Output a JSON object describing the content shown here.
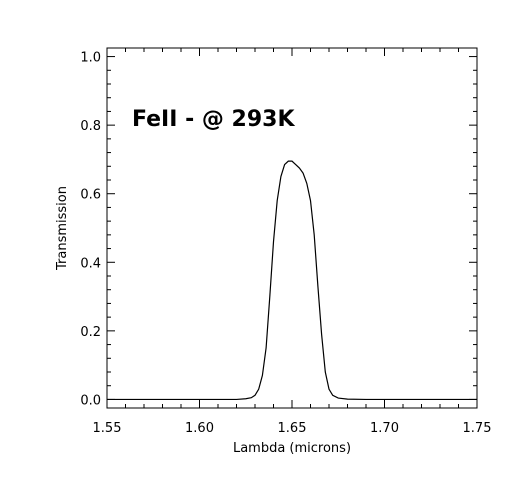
{
  "chart_data": {
    "type": "line",
    "title": "",
    "xlabel": "Lambda (microns)",
    "ylabel": "Transmission",
    "xlim": [
      1.55,
      1.75
    ],
    "ylim": [
      -0.025,
      1.025
    ],
    "xticks": [
      1.55,
      1.6,
      1.65,
      1.7,
      1.75
    ],
    "xtick_labels": [
      "1.55",
      "1.60",
      "1.65",
      "1.70",
      "1.75"
    ],
    "yticks": [
      0.0,
      0.2,
      0.4,
      0.6,
      0.8,
      1.0
    ],
    "ytick_labels": [
      "0.0",
      "0.2",
      "0.4",
      "0.6",
      "0.8",
      "1.0"
    ],
    "annotation": "FeII - @ 293K",
    "grid": false,
    "line_color": "#000000",
    "series": [
      {
        "x": [
          1.55,
          1.6,
          1.62,
          1.625,
          1.628,
          1.63,
          1.632,
          1.634,
          1.636,
          1.638,
          1.64,
          1.642,
          1.644,
          1.646,
          1.648,
          1.65,
          1.652,
          1.654,
          1.656,
          1.658,
          1.66,
          1.662,
          1.664,
          1.666,
          1.668,
          1.67,
          1.672,
          1.675,
          1.68,
          1.69,
          1.7,
          1.75
        ],
        "y": [
          0.0,
          0.0,
          0.0,
          0.002,
          0.005,
          0.012,
          0.03,
          0.07,
          0.15,
          0.3,
          0.46,
          0.58,
          0.65,
          0.685,
          0.695,
          0.695,
          0.685,
          0.675,
          0.66,
          0.63,
          0.58,
          0.48,
          0.33,
          0.19,
          0.08,
          0.03,
          0.012,
          0.004,
          0.001,
          0.0,
          0.0,
          0.0
        ]
      }
    ]
  }
}
